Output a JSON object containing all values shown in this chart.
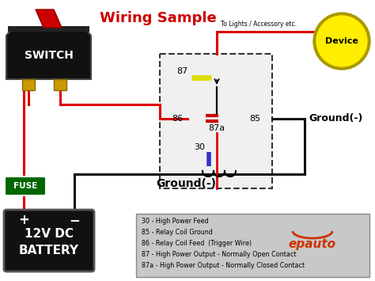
{
  "title": "Wiring Sample",
  "title_color": "#cc0000",
  "title_fontsize": 13,
  "bg_color": "#ffffff",
  "legend_items": [
    "30 - High Power Feed",
    "85 - Relay Coil Ground",
    "86 - Relay Coil Feed  (Trigger Wire)",
    "87 - High Power Output - Normally Open Contact",
    "87a - High Power Output - Normally Closed Contact"
  ],
  "legend_box_color": "#c8c8c8",
  "ground_label": "Ground(-)",
  "device_label": "Device",
  "device_color": "#ffee00",
  "switch_color": "#111111",
  "switch_label": "SWITCH",
  "fuse_color": "#006600",
  "fuse_label": "FUSE",
  "battery_label_top": "12V DC",
  "battery_label_bot": "BATTERY",
  "battery_color": "#111111",
  "red_wire": "#dd0000",
  "black_wire": "#111111",
  "blue_wire": "#3333cc",
  "yellow_wire": "#dddd00",
  "relay_box_edge": "#333333",
  "to_lights_label": "To Lights / Accessory etc.",
  "ground2_label": "Ground(-)"
}
